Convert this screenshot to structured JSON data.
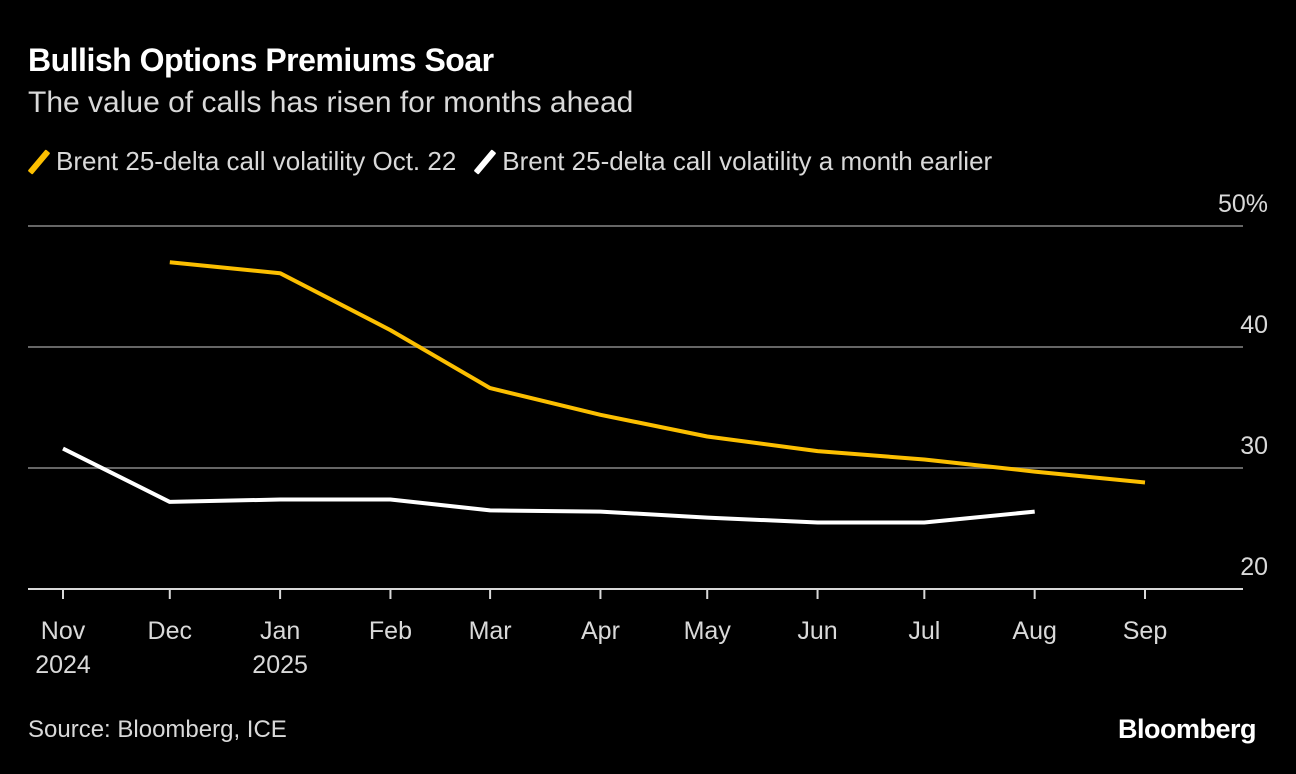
{
  "title": "Bullish Options Premiums Soar",
  "subtitle": "The value of calls has risen for months ahead",
  "source": "Source: Bloomberg, ICE",
  "logo": "Bloomberg",
  "chart_data": {
    "type": "line",
    "ylim": [
      20,
      50
    ],
    "yticks": [
      20,
      30,
      40,
      50
    ],
    "ytick_labels": [
      "20",
      "30",
      "40",
      "50%"
    ],
    "grid": true,
    "legend_position": "top-left",
    "x_ticks": [
      {
        "date": "2024-11-01",
        "label": "Nov",
        "sub": "2024"
      },
      {
        "date": "2024-12-01",
        "label": "Dec",
        "sub": ""
      },
      {
        "date": "2025-01-01",
        "label": "Jan",
        "sub": "2025"
      },
      {
        "date": "2025-02-01",
        "label": "Feb",
        "sub": ""
      },
      {
        "date": "2025-03-01",
        "label": "Mar",
        "sub": ""
      },
      {
        "date": "2025-04-01",
        "label": "Apr",
        "sub": ""
      },
      {
        "date": "2025-05-01",
        "label": "May",
        "sub": ""
      },
      {
        "date": "2025-06-01",
        "label": "Jun",
        "sub": ""
      },
      {
        "date": "2025-07-01",
        "label": "Jul",
        "sub": ""
      },
      {
        "date": "2025-08-01",
        "label": "Aug",
        "sub": ""
      },
      {
        "date": "2025-09-01",
        "label": "Sep",
        "sub": ""
      }
    ],
    "series": [
      {
        "name": "Brent 25-delta call volatility Oct. 22",
        "color": "#fcbf00",
        "x": [
          "2024-12-01",
          "2025-01-01",
          "2025-02-01",
          "2025-03-01",
          "2025-04-01",
          "2025-05-01",
          "2025-06-01",
          "2025-07-01",
          "2025-08-01",
          "2025-09-01"
        ],
        "y": [
          47.0,
          46.1,
          41.4,
          36.6,
          34.4,
          32.6,
          31.4,
          30.7,
          29.7,
          28.8
        ]
      },
      {
        "name": "Brent 25-delta call volatility a month earlier",
        "color": "#ffffff",
        "x": [
          "2024-11-01",
          "2024-12-01",
          "2025-01-01",
          "2025-02-01",
          "2025-03-01",
          "2025-04-01",
          "2025-05-01",
          "2025-06-01",
          "2025-07-01",
          "2025-08-01"
        ],
        "y": [
          31.6,
          27.2,
          27.4,
          27.4,
          26.5,
          26.4,
          25.9,
          25.5,
          25.5,
          26.4
        ]
      }
    ]
  }
}
